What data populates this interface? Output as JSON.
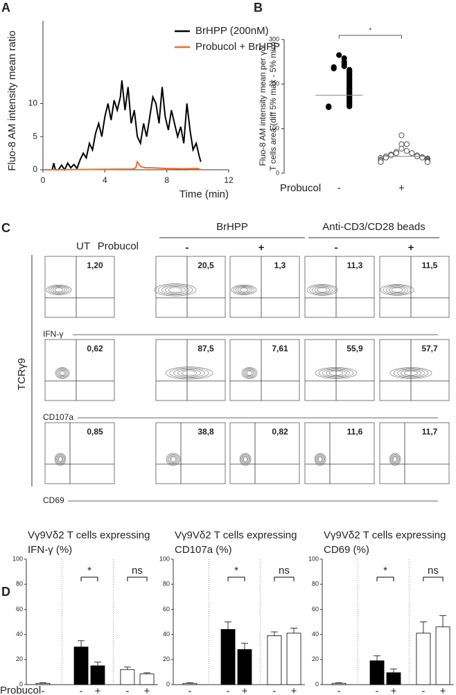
{
  "chart_data": [
    {
      "panel": "A",
      "type": "line",
      "ylabel": "Fluo-8 AM intensity mean ratio",
      "xlabel": "Time (min)",
      "xlim": [
        0,
        12
      ],
      "xticks": [
        0,
        4,
        8,
        12
      ],
      "ylim": [
        0,
        22.5
      ],
      "yticks": [
        0,
        5,
        10
      ],
      "legend": "upper right",
      "series": [
        {
          "name": "BrHPP (200nM)",
          "color": "#000000",
          "x": [
            0.6,
            0.7,
            0.8,
            1.0,
            1.2,
            1.4,
            1.6,
            1.8,
            2.0,
            2.2,
            2.4,
            2.6,
            2.8,
            3.0,
            3.2,
            3.4,
            3.6,
            3.8,
            4.0,
            4.2,
            4.4,
            4.6,
            4.8,
            5.0,
            5.1,
            5.3,
            5.5,
            5.7,
            5.9,
            6.1,
            6.3,
            6.5,
            6.7,
            6.9,
            7.1,
            7.3,
            7.5,
            7.7,
            7.9,
            8.1,
            8.3,
            8.5,
            8.7,
            8.9,
            9.1,
            9.3,
            9.5,
            9.7,
            9.9,
            10.1,
            10.2
          ],
          "values": [
            0,
            1,
            0,
            0,
            0.7,
            0,
            1,
            0.3,
            0.8,
            0.2,
            1.5,
            2.5,
            1.8,
            4,
            3,
            5.5,
            7,
            5,
            8,
            10,
            7.5,
            10.5,
            9,
            11,
            13.5,
            9,
            12.5,
            7,
            9,
            5,
            4,
            7,
            5,
            8,
            11,
            10,
            7,
            12.5,
            8,
            6,
            9,
            7,
            5,
            6.5,
            4,
            10,
            6,
            3,
            4,
            2,
            1.2
          ]
        },
        {
          "name": "Probucol + BrHPP",
          "color": "#f26b21",
          "x": [
            0,
            5.8,
            6.0,
            6.1,
            6.3,
            6.6,
            7,
            8,
            9,
            10,
            10.2
          ],
          "values": [
            0,
            0.1,
            0.3,
            1.2,
            0.5,
            0.3,
            0.3,
            0.2,
            0.15,
            0.2,
            0
          ]
        }
      ]
    },
    {
      "panel": "B",
      "type": "strip",
      "ylabel": [
        "Fluo-8 AM intensity mean per γδ",
        "T cells area (diff 5% max - 5% min)"
      ],
      "xlabel": "Probucol",
      "categories": [
        "-",
        "+"
      ],
      "ylim": [
        0,
        300
      ],
      "yticks": [
        0,
        100,
        200,
        300
      ],
      "annotation": "*",
      "means": [
        175,
        38
      ],
      "series": [
        {
          "color": "#000000",
          "filled": true,
          "values": [
            265,
            258,
            250,
            245,
            240,
            238,
            235,
            232,
            230,
            228,
            225,
            222,
            220,
            218,
            215,
            212,
            210,
            208,
            205,
            202,
            200,
            198,
            195,
            192,
            190,
            188,
            185,
            182,
            180,
            178,
            175,
            172,
            170,
            168,
            165,
            162,
            160,
            158,
            155,
            152,
            150,
            150,
            148
          ]
        },
        {
          "color": "#555555",
          "filled": false,
          "values": [
            85,
            65,
            65,
            55,
            50,
            48,
            45,
            45,
            42,
            40,
            40,
            38,
            38,
            36,
            35,
            35,
            34,
            33,
            32,
            30,
            30,
            28,
            28,
            26,
            25,
            25
          ]
        }
      ]
    },
    {
      "panel": "C",
      "type": "flow",
      "ylabel": "TCRγ9",
      "first_column": "UT",
      "treatment_label": "Probucol",
      "groups": [
        "BrHPP",
        "Anti-CD3/CD28 beads"
      ],
      "columns": [
        "-",
        "+",
        "-",
        "+"
      ],
      "rows": [
        {
          "name": "IFN-γ",
          "values": [
            1.2,
            20.5,
            1.3,
            11.3,
            11.5
          ],
          "value_labels": [
            "1,20",
            "20,5",
            "1,3",
            "11,3",
            "11,5"
          ]
        },
        {
          "name": "CD107a",
          "values": [
            0.62,
            87.5,
            7.61,
            55.9,
            57.7
          ],
          "value_labels": [
            "0,62",
            "87,5",
            "7,61",
            "55,9",
            "57,7"
          ]
        },
        {
          "name": "CD69",
          "values": [
            0.85,
            38.8,
            0.82,
            11.6,
            11.7
          ],
          "value_labels": [
            "0,85",
            "38,8",
            "0,82",
            "11,6",
            "11,7"
          ]
        }
      ]
    },
    {
      "panel": "D",
      "type": "bar",
      "title": [
        "Vγ9Vδ2 T cells expressing",
        "IFN-γ (%)"
      ],
      "xlabel": "Probucol",
      "categories": [
        "-",
        "-",
        "+",
        "-",
        "+"
      ],
      "values": [
        1,
        30,
        15,
        12,
        8.5
      ],
      "errors": [
        0.5,
        5,
        3,
        2,
        1
      ],
      "colors": [
        "#ffffff",
        "#000000",
        "#000000",
        "#ffffff",
        "#ffffff"
      ],
      "ylim": [
        0,
        100
      ],
      "yticks": [
        0,
        20,
        40,
        60,
        80,
        100
      ],
      "annotations": [
        "*",
        "ns"
      ]
    },
    {
      "type": "bar",
      "title": [
        "Vγ9Vδ2 T cells expressing",
        "CD107a (%)"
      ],
      "categories": [
        "-",
        "-",
        "+",
        "-",
        "+"
      ],
      "values": [
        1,
        44,
        28,
        39,
        41
      ],
      "errors": [
        0.5,
        6,
        5,
        3,
        4
      ],
      "colors": [
        "#ffffff",
        "#000000",
        "#000000",
        "#ffffff",
        "#ffffff"
      ],
      "ylim": [
        0,
        100
      ],
      "yticks": [
        0,
        20,
        40,
        60,
        80,
        100
      ],
      "annotations": [
        "*",
        "ns"
      ]
    },
    {
      "type": "bar",
      "title": [
        "Vγ9Vδ2 T cells expressing",
        "CD69 (%)"
      ],
      "categories": [
        "-",
        "-",
        "+",
        "-",
        "+"
      ],
      "values": [
        1,
        19,
        9.5,
        41,
        46
      ],
      "errors": [
        0.5,
        4,
        3,
        9,
        9
      ],
      "colors": [
        "#ffffff",
        "#000000",
        "#000000",
        "#ffffff",
        "#ffffff"
      ],
      "ylim": [
        0,
        100
      ],
      "yticks": [
        0,
        20,
        40,
        60,
        80,
        100
      ],
      "annotations": [
        "*",
        "ns"
      ]
    }
  ]
}
